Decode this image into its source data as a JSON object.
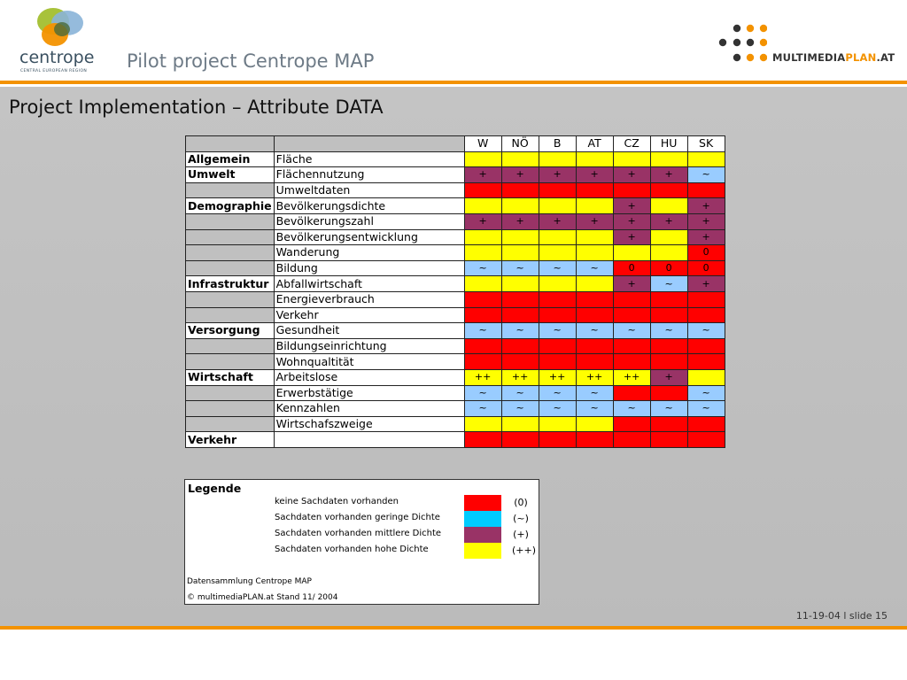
{
  "header": {
    "logo_text": "centrope",
    "logo_subtext": "CENTRAL EUROPEAN REGION",
    "title": "Pilot project Centrope MAP",
    "brand_prefix": "MULTIMEDIA",
    "brand_plan": "PLAN",
    "brand_suffix": ".AT"
  },
  "colors": {
    "accent_orange": "#f39200",
    "none": "#ff0000",
    "low": "#00ccff",
    "medium": "#993366",
    "high": "#ffff00"
  },
  "section_title": "Project Implementation – Attribute DATA",
  "table": {
    "columns": [
      "W",
      "NÖ",
      "B",
      "AT",
      "CZ",
      "HU",
      "SK"
    ],
    "rows": [
      {
        "category": "Allgemein",
        "attribute": "Fläche",
        "cells": [
          [
            "3",
            ""
          ],
          [
            "3",
            ""
          ],
          [
            "3",
            ""
          ],
          [
            "3",
            ""
          ],
          [
            "3",
            ""
          ],
          [
            "3",
            ""
          ],
          [
            "3",
            ""
          ]
        ]
      },
      {
        "category": "Umwelt",
        "attribute": "Flächennutzung",
        "cells": [
          [
            "2",
            "+"
          ],
          [
            "2",
            "+"
          ],
          [
            "2",
            "+"
          ],
          [
            "2",
            "+"
          ],
          [
            "2",
            "+"
          ],
          [
            "2",
            "+"
          ],
          [
            "1s",
            "~"
          ]
        ]
      },
      {
        "category": "",
        "attribute": "Umweltdaten",
        "cells": [
          [
            "0",
            ""
          ],
          [
            "0",
            ""
          ],
          [
            "0",
            ""
          ],
          [
            "0",
            ""
          ],
          [
            "0",
            ""
          ],
          [
            "0",
            ""
          ],
          [
            "0",
            ""
          ]
        ]
      },
      {
        "category": "Demographie",
        "attribute": "Bevölkerungsdichte",
        "cells": [
          [
            "3",
            ""
          ],
          [
            "3",
            ""
          ],
          [
            "3",
            ""
          ],
          [
            "3",
            ""
          ],
          [
            "2",
            "+"
          ],
          [
            "3",
            ""
          ],
          [
            "2",
            "+"
          ]
        ]
      },
      {
        "category": "",
        "attribute": "Bevölkerungszahl",
        "cells": [
          [
            "2",
            "+"
          ],
          [
            "2",
            "+"
          ],
          [
            "2",
            "+"
          ],
          [
            "2",
            "+"
          ],
          [
            "2",
            "+"
          ],
          [
            "2",
            "+"
          ],
          [
            "2",
            "+"
          ]
        ]
      },
      {
        "category": "",
        "attribute": "Bevölkerungsentwicklung",
        "cells": [
          [
            "3",
            ""
          ],
          [
            "3",
            ""
          ],
          [
            "3",
            ""
          ],
          [
            "3",
            ""
          ],
          [
            "2",
            "+"
          ],
          [
            "3",
            ""
          ],
          [
            "2",
            "+"
          ]
        ]
      },
      {
        "category": "",
        "attribute": "Wanderung",
        "cells": [
          [
            "3",
            ""
          ],
          [
            "3",
            ""
          ],
          [
            "3",
            ""
          ],
          [
            "3",
            ""
          ],
          [
            "3",
            ""
          ],
          [
            "3",
            ""
          ],
          [
            "0",
            "0"
          ]
        ]
      },
      {
        "category": "",
        "attribute": "Bildung",
        "cells": [
          [
            "1s",
            "~"
          ],
          [
            "1s",
            "~"
          ],
          [
            "1s",
            "~"
          ],
          [
            "1s",
            "~"
          ],
          [
            "0",
            "0"
          ],
          [
            "0",
            "0"
          ],
          [
            "0",
            "0"
          ]
        ]
      },
      {
        "category": "Infrastruktur",
        "attribute": "Abfallwirtschaft",
        "cells": [
          [
            "3",
            ""
          ],
          [
            "3",
            ""
          ],
          [
            "3",
            ""
          ],
          [
            "3",
            ""
          ],
          [
            "2",
            "+"
          ],
          [
            "1s",
            "~"
          ],
          [
            "2",
            "+"
          ]
        ]
      },
      {
        "category": "",
        "attribute": "Energieverbrauch",
        "cells": [
          [
            "0",
            ""
          ],
          [
            "0",
            ""
          ],
          [
            "0",
            ""
          ],
          [
            "0",
            ""
          ],
          [
            "0",
            ""
          ],
          [
            "0",
            ""
          ],
          [
            "0",
            ""
          ]
        ]
      },
      {
        "category": "",
        "attribute": "Verkehr",
        "cells": [
          [
            "0",
            ""
          ],
          [
            "0",
            ""
          ],
          [
            "0",
            ""
          ],
          [
            "0",
            ""
          ],
          [
            "0",
            ""
          ],
          [
            "0",
            ""
          ],
          [
            "0",
            ""
          ]
        ]
      },
      {
        "category": "Versorgung",
        "attribute": "Gesundheit",
        "cells": [
          [
            "1s",
            "~"
          ],
          [
            "1s",
            "~"
          ],
          [
            "1s",
            "~"
          ],
          [
            "1s",
            "~"
          ],
          [
            "1s",
            "~"
          ],
          [
            "1s",
            "~"
          ],
          [
            "1s",
            "~"
          ]
        ]
      },
      {
        "category": "",
        "attribute": "Bildungseinrichtung",
        "cells": [
          [
            "0",
            ""
          ],
          [
            "0",
            ""
          ],
          [
            "0",
            ""
          ],
          [
            "0",
            ""
          ],
          [
            "0",
            ""
          ],
          [
            "0",
            ""
          ],
          [
            "0",
            ""
          ]
        ]
      },
      {
        "category": "",
        "attribute": "Wohnqualtität",
        "cells": [
          [
            "0",
            ""
          ],
          [
            "0",
            ""
          ],
          [
            "0",
            ""
          ],
          [
            "0",
            ""
          ],
          [
            "0",
            ""
          ],
          [
            "0",
            ""
          ],
          [
            "0",
            ""
          ]
        ]
      },
      {
        "category": "Wirtschaft",
        "attribute": "Arbeitslose",
        "cells": [
          [
            "3",
            "++"
          ],
          [
            "3",
            "++"
          ],
          [
            "3",
            "++"
          ],
          [
            "3",
            "++"
          ],
          [
            "3",
            "++"
          ],
          [
            "2",
            "+"
          ],
          [
            "3",
            ""
          ]
        ]
      },
      {
        "category": "",
        "attribute": "Erwerbstätige",
        "cells": [
          [
            "1s",
            "~"
          ],
          [
            "1s",
            "~"
          ],
          [
            "1s",
            "~"
          ],
          [
            "1s",
            "~"
          ],
          [
            "0",
            ""
          ],
          [
            "0",
            ""
          ],
          [
            "1s",
            "~"
          ]
        ]
      },
      {
        "category": "",
        "attribute": "Kennzahlen",
        "cells": [
          [
            "1s",
            "~"
          ],
          [
            "1s",
            "~"
          ],
          [
            "1s",
            "~"
          ],
          [
            "1s",
            "~"
          ],
          [
            "1s",
            "~"
          ],
          [
            "1s",
            "~"
          ],
          [
            "1s",
            "~"
          ]
        ]
      },
      {
        "category": "",
        "attribute": "Wirtschafszweige",
        "cells": [
          [
            "3",
            ""
          ],
          [
            "3",
            ""
          ],
          [
            "3",
            ""
          ],
          [
            "3",
            ""
          ],
          [
            "0",
            ""
          ],
          [
            "0",
            ""
          ],
          [
            "0",
            ""
          ]
        ]
      },
      {
        "category": "Verkehr",
        "attribute": "",
        "cells": [
          [
            "0",
            ""
          ],
          [
            "0",
            ""
          ],
          [
            "0",
            ""
          ],
          [
            "0",
            ""
          ],
          [
            "0",
            ""
          ],
          [
            "0",
            ""
          ],
          [
            "0",
            ""
          ]
        ]
      }
    ]
  },
  "legend": {
    "title": "Legende",
    "items": [
      {
        "label": "keine Sachdaten vorhanden",
        "code": "(0)",
        "color": "#ff0000"
      },
      {
        "label": "Sachdaten vorhanden geringe Dichte",
        "code": "(~)",
        "color": "#00ccff"
      },
      {
        "label": "Sachdaten vorhanden mittlere Dichte",
        "code": "(+)",
        "color": "#993366"
      },
      {
        "label": "Sachdaten vorhanden hohe Dichte",
        "code": "(++)",
        "color": "#ffff00"
      }
    ],
    "note1": "Datensammlung  Centrope MAP",
    "note2": "© multimediaPLAN.at Stand 11/ 2004"
  },
  "footer": {
    "slide_info": "11-19-04  l  slide 15"
  }
}
